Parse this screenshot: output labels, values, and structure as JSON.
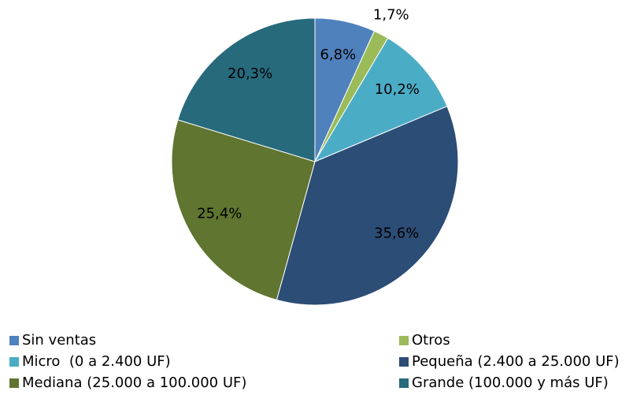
{
  "chart_data": {
    "type": "pie",
    "categories": [
      "Sin ventas",
      "Otros",
      "Micro  (0 a 2.400 UF)",
      "Pequeña (2.400 a 25.000 UF)",
      "Mediana (25.000 a 100.000 UF)",
      "Grande (100.000 y más UF)"
    ],
    "values": [
      6.8,
      1.7,
      10.2,
      35.6,
      25.4,
      20.3
    ],
    "value_labels": [
      "6,8%",
      "1,7%",
      "10,2%",
      "35,6%",
      "25,4%",
      "20,3%"
    ],
    "colors": [
      "#4f81bd",
      "#9bbb59",
      "#4bacc6",
      "#2c4d75",
      "#5f7530",
      "#276a7c"
    ],
    "legend": "bottom"
  }
}
